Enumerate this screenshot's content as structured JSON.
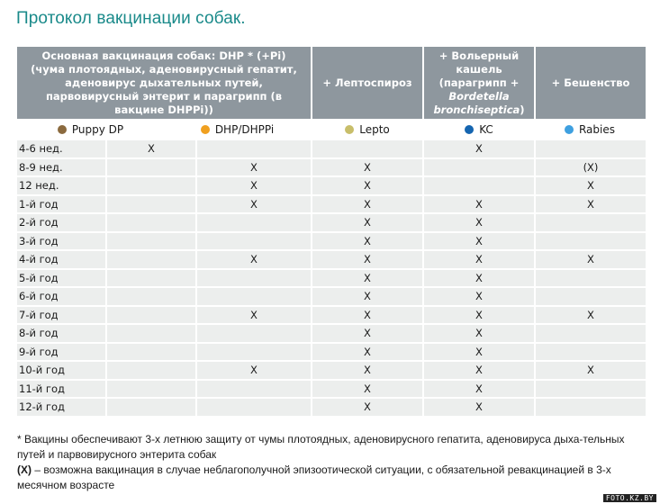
{
  "title": "Протокол вакцинации собак.",
  "header": {
    "main": "Основная вакцинация собак: DHP * (+Pi) (чума плотоядных, аденовирусный гепатит, аденовирус дыхательных путей, парвовирусный энтерит и парагрипп (в вакцине DHPPi))",
    "lepto": "+ Лептоспироз",
    "kennel_line1": "+ Вольерный кашель",
    "kennel_line2": "(парагрипп +",
    "kennel_italic": "Bordetella bronchiseptica",
    "kennel_close": ")",
    "rabies": "+ Бешенство"
  },
  "legend": [
    {
      "label": "Puppy DP",
      "color": "#8b6a3e"
    },
    {
      "label": "DHP/DHPPi",
      "color": "#f0a020"
    },
    {
      "label": "Lepto",
      "color": "#c8be6a"
    },
    {
      "label": "KC",
      "color": "#1565b0"
    },
    {
      "label": "Rabies",
      "color": "#3ea0e0"
    }
  ],
  "rows": [
    {
      "age": "4-6 нед.",
      "puppy": "X",
      "dhp": "",
      "lepto": "",
      "kc": "X",
      "rabies": ""
    },
    {
      "age": "8-9 нед.",
      "puppy": "",
      "dhp": "X",
      "lepto": "X",
      "kc": "",
      "rabies": "(X)"
    },
    {
      "age": "12 нед.",
      "puppy": "",
      "dhp": "X",
      "lepto": "X",
      "kc": "",
      "rabies": "X"
    },
    {
      "age": "1-й год",
      "puppy": "",
      "dhp": "X",
      "lepto": "X",
      "kc": "X",
      "rabies": "X"
    },
    {
      "age": "2-й год",
      "puppy": "",
      "dhp": "",
      "lepto": "X",
      "kc": "X",
      "rabies": ""
    },
    {
      "age": "3-й год",
      "puppy": "",
      "dhp": "",
      "lepto": "X",
      "kc": "X",
      "rabies": ""
    },
    {
      "age": "4-й год",
      "puppy": "",
      "dhp": "X",
      "lepto": "X",
      "kc": "X",
      "rabies": "X"
    },
    {
      "age": "5-й год",
      "puppy": "",
      "dhp": "",
      "lepto": "X",
      "kc": "X",
      "rabies": ""
    },
    {
      "age": "6-й год",
      "puppy": "",
      "dhp": "",
      "lepto": "X",
      "kc": "X",
      "rabies": ""
    },
    {
      "age": "7-й год",
      "puppy": "",
      "dhp": "X",
      "lepto": "X",
      "kc": "X",
      "rabies": "X"
    },
    {
      "age": "8-й год",
      "puppy": "",
      "dhp": "",
      "lepto": "X",
      "kc": "X",
      "rabies": ""
    },
    {
      "age": "9-й год",
      "puppy": "",
      "dhp": "",
      "lepto": "X",
      "kc": "X",
      "rabies": ""
    },
    {
      "age": "10-й год",
      "puppy": "",
      "dhp": "X",
      "lepto": "X",
      "kc": "X",
      "rabies": "X"
    },
    {
      "age": "11-й год",
      "puppy": "",
      "dhp": "",
      "lepto": "X",
      "kc": "X",
      "rabies": ""
    },
    {
      "age": "12-й год",
      "puppy": "",
      "dhp": "",
      "lepto": "X",
      "kc": "X",
      "rabies": ""
    }
  ],
  "footnotes": {
    "note1": "* Вакцины обеспечивают 3-х летнюю защиту от чумы плотоядных, аденовирусного гепатита, аденовируса дыха-тельных путей и парвовирусного энтерита собак",
    "note2_bold": "(X)",
    "note2_text": " – возможна вакцинация в случае неблагополучной эпизоотической ситуации, с обязательной ревакцинацией в 3-х месячном возрасте"
  },
  "watermark": "FOTO.KZ.BY"
}
